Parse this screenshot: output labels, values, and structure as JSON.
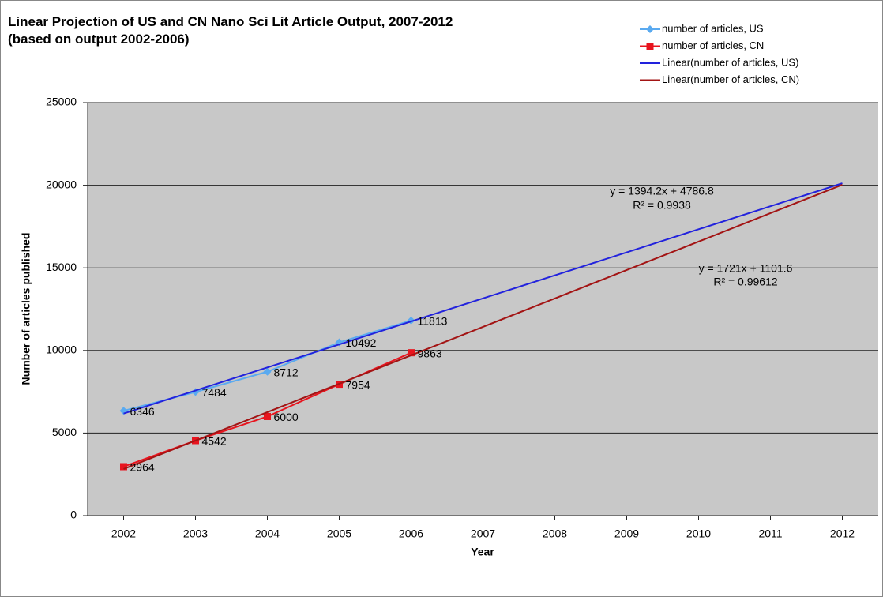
{
  "chart_data": {
    "type": "line",
    "title": "Linear Projection of US and CN Nano Sci Lit Article Output, 2007-2012",
    "subtitle": "(based on output 2002-2006)",
    "x_label": "Year",
    "y_label": "Number of articles published",
    "x": [
      2002,
      2003,
      2004,
      2005,
      2006,
      2007,
      2008,
      2009,
      2010,
      2011,
      2012
    ],
    "xlim": [
      2001.5,
      2012.5
    ],
    "ylim": [
      0,
      25000
    ],
    "yticks": [
      0,
      5000,
      10000,
      15000,
      20000,
      25000
    ],
    "grid": true,
    "legend": "top-right",
    "series": [
      {
        "name": "number of articles, US",
        "color": "#5aaaf0",
        "marker": "diamond",
        "data_labels": true,
        "values": [
          6346,
          7484,
          8712,
          10492,
          11813,
          null,
          null,
          null,
          null,
          null,
          null
        ]
      },
      {
        "name": "number of articles, CN",
        "color": "#e8141e",
        "marker": "square",
        "data_labels": true,
        "values": [
          2964,
          4542,
          6000,
          7954,
          9863,
          null,
          null,
          null,
          null,
          null,
          null
        ]
      },
      {
        "name": "Linear(number of articles, US)",
        "color": "#2222dd",
        "marker": "none",
        "data_labels": false,
        "values": [
          6181,
          7575.2,
          8969.4,
          10363.6,
          11757.8,
          13152,
          14546.2,
          15940.4,
          17334.6,
          18728.8,
          20123
        ]
      },
      {
        "name": "Linear(number of articles, CN)",
        "color": "#a31414",
        "marker": "none",
        "data_labels": false,
        "values": [
          2822.6,
          4543.6,
          6264.6,
          7985.6,
          9706.6,
          11427.6,
          13148.6,
          14869.6,
          16590.6,
          18311.6,
          20032.6
        ]
      }
    ],
    "annotations": [
      "y = 1394.2x + 4786.8",
      "R² = 0.9938",
      "y = 1721x + 1101.6",
      "R² = 0.99612"
    ]
  }
}
